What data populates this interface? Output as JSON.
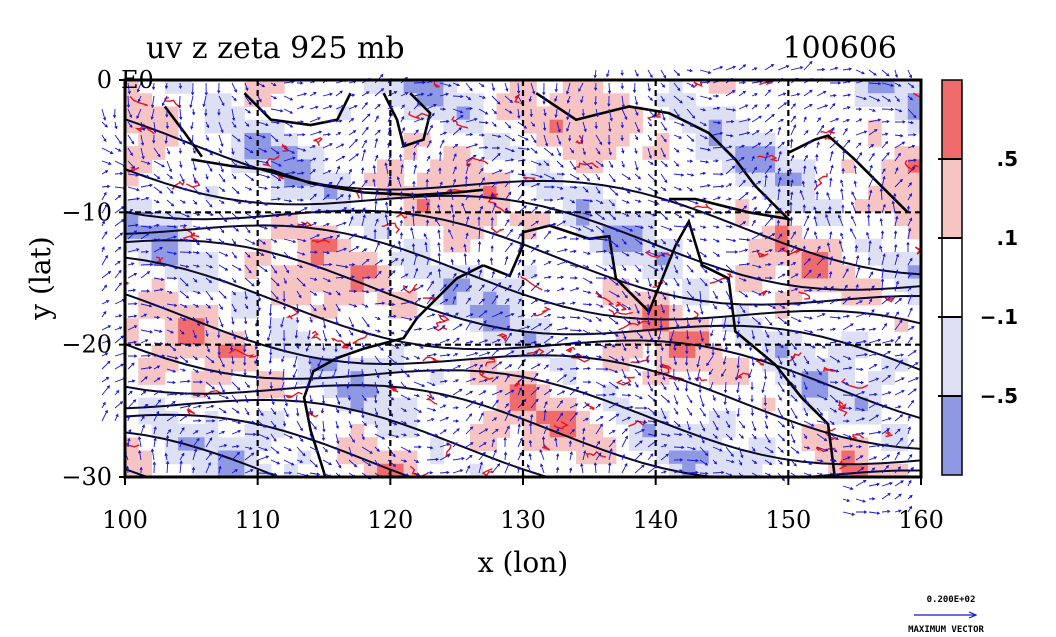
{
  "chart_data": {
    "type": "heatmap",
    "title": "uv z zeta 925 mb",
    "date": "100606",
    "xlabel": "x (lon)",
    "ylabel": "y (lat)",
    "xlim": [
      100,
      160
    ],
    "ylim": [
      -30,
      0
    ],
    "x_ticks": [
      100,
      110,
      120,
      130,
      140,
      150,
      160
    ],
    "x_tick_labels": [
      "100",
      "110",
      "120",
      "130",
      "140",
      "150",
      "160"
    ],
    "y_ticks": [
      0,
      -10,
      -20,
      -30
    ],
    "y_tick_labels": [
      "0",
      "−10",
      "−20",
      "−30"
    ],
    "corner_label": "E0",
    "grid": true,
    "colorbar": {
      "labels": [
        ".5",
        ".1",
        "−.1",
        "−.5"
      ],
      "colors": [
        "#f06c6c",
        "#f7c4c4",
        "#ffffff",
        "#dde0f4",
        "#8f98e3"
      ]
    },
    "overlays": {
      "vector_color": "#1414dc",
      "positive_contour_color": "#e8141e",
      "height_contour_color": "#0a0a28",
      "coastline_color": "#000000"
    },
    "vector_key": {
      "value_label": "0.200E+02",
      "caption": "MAXIMUM VECTOR"
    }
  }
}
